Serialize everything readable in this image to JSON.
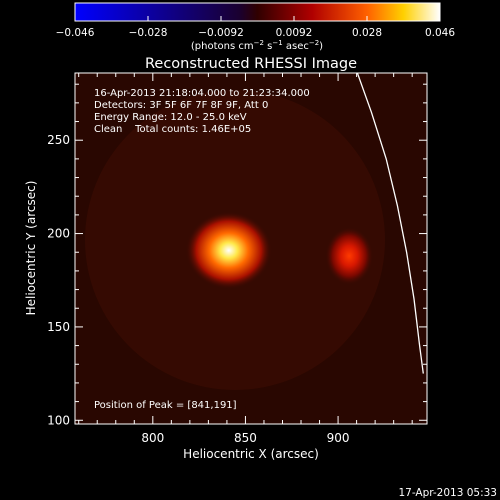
{
  "colorbar": {
    "tick_labels": [
      "−0.046",
      "−0.028",
      "−0.0092",
      "0.0092",
      "0.028",
      "0.046"
    ],
    "unit_label_base": "(photons cm",
    "unit_label_exp1": "−2",
    "unit_label_mid1": " s",
    "unit_label_exp2": "−1",
    "unit_label_mid2": " asec",
    "unit_label_exp3": "−2",
    "unit_label_end": ")",
    "colors": [
      "#0000ff",
      "#000000",
      "#ff0000",
      "#ffff00",
      "#ffffff"
    ]
  },
  "plot": {
    "title": "Reconstructed RHESSI Image",
    "xlabel": "Heliocentric X (arcsec)",
    "ylabel": "Heliocentric Y (arcsec)",
    "xlim": [
      758,
      948
    ],
    "ylim": [
      98,
      286
    ],
    "x_ticks": [
      800,
      850,
      900
    ],
    "y_ticks": [
      100,
      150,
      200,
      250
    ],
    "x_ticks_label": [
      "800",
      "850",
      "900"
    ],
    "y_ticks_label": [
      "100",
      "150",
      "200",
      "250"
    ],
    "background_color": "#320a02",
    "info_lines": [
      "16-Apr-2013 21:18:04.000 to 21:23:34.000",
      "Detectors: 3F 5F 6F 7F 8F 9F, Att 0",
      "Energy Range: 12.0 - 25.0 keV",
      "Clean    Total counts: 1.46E+05"
    ],
    "peak_text": "Position of Peak = [841,191]"
  },
  "sources": [
    {
      "x": 841,
      "y": 191,
      "sigma_x": 9,
      "sigma_y": 8,
      "peak_level": 1.0
    },
    {
      "x": 906,
      "y": 188,
      "sigma_x": 5,
      "sigma_y": 6,
      "peak_level": 0.55
    }
  ],
  "limb": {
    "points": [
      [
        909,
        290
      ],
      [
        918,
        265
      ],
      [
        926,
        240
      ],
      [
        932,
        215
      ],
      [
        937,
        190
      ],
      [
        941,
        165
      ],
      [
        944,
        140
      ],
      [
        946,
        125
      ]
    ]
  },
  "footer": {
    "timestamp": "17-Apr-2013 05:33"
  }
}
